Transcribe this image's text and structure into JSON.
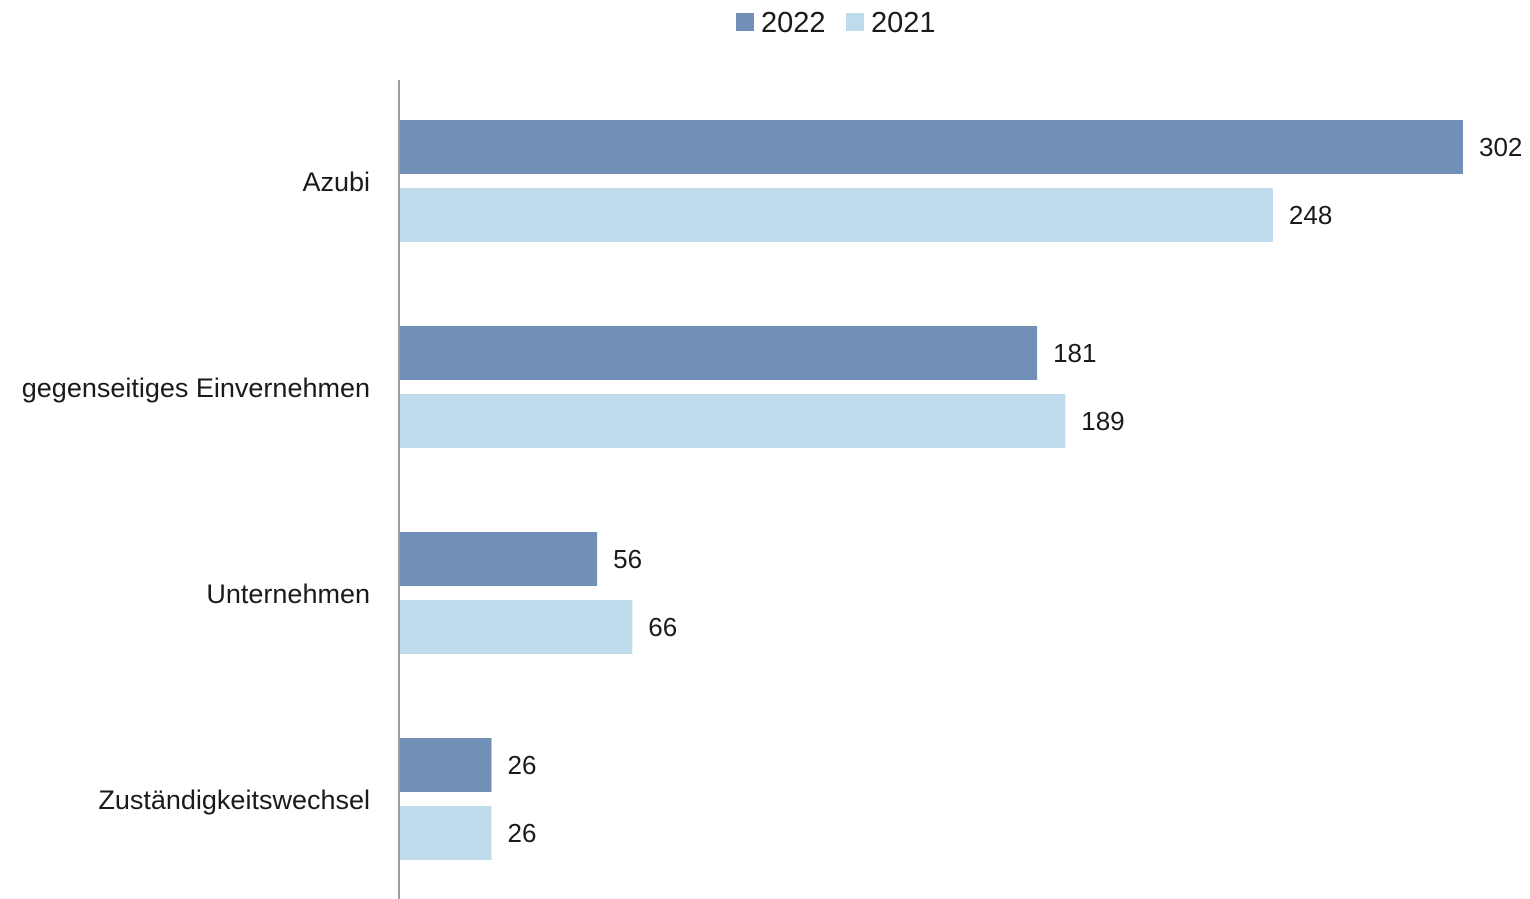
{
  "chart_data": {
    "type": "bar",
    "orientation": "horizontal",
    "categories": [
      "Azubi",
      "gegenseitiges Einvernehmen",
      "Unternehmen",
      "Zuständigkeitswechsel"
    ],
    "series": [
      {
        "name": "2022",
        "color": "#7090b8",
        "values": [
          302,
          181,
          56,
          26
        ]
      },
      {
        "name": "2021",
        "color": "#bfdaeb",
        "values": [
          248,
          189,
          66,
          26
        ]
      }
    ],
    "data_labels": true,
    "legend_position": "top-center",
    "grid": false,
    "xlim": [
      0,
      302
    ]
  }
}
